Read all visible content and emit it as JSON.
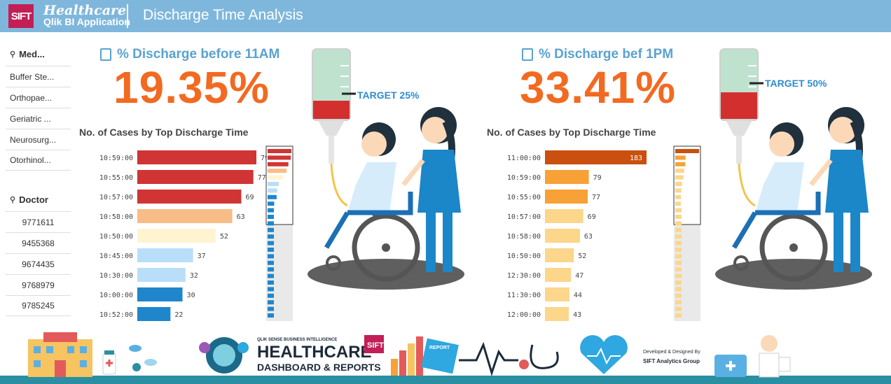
{
  "header": {
    "logo": "SIFT",
    "brand_line1": "Healthcare",
    "brand_line2": "Qlik BI Application",
    "title": "Discharge Time Analysis"
  },
  "filters": [
    {
      "label": "Med...",
      "icon": "search-icon",
      "items": [
        "Buffer Ste...",
        "Orthopae...",
        "Geriatric ...",
        "Neurosurg...",
        "Otorhinol..."
      ]
    },
    {
      "label": "Doctor",
      "icon": "search-icon",
      "items": [
        "9771611",
        "9455368",
        "9674435",
        "9768979",
        "9785245"
      ]
    }
  ],
  "left": {
    "kpi_title": "% Discharge before 11AM",
    "kpi_value": "19.35%",
    "target": "TARGET 25%",
    "target_pct": 25,
    "fill_pct": 19.35,
    "chart_title": "No. of Cases by Top Discharge Time"
  },
  "right": {
    "kpi_title": "% Discharge bef 1PM",
    "kpi_value": "33.41%",
    "target": "TARGET 50%",
    "target_pct": 50,
    "fill_pct": 33.41,
    "chart_title": "No. of Cases by Top Discharge Time"
  },
  "chart_data": [
    {
      "type": "bar",
      "title": "No. of Cases by Top Discharge Time",
      "orientation": "horizontal",
      "categories": [
        "10:59:00",
        "10:55:00",
        "10:57:00",
        "10:58:00",
        "10:50:00",
        "10:45:00",
        "10:30:00",
        "10:00:00",
        "10:52:00"
      ],
      "values": [
        79,
        77,
        69,
        63,
        52,
        37,
        32,
        30,
        22
      ],
      "colors": [
        "#d03434",
        "#d03434",
        "#d03434",
        "#f8bd86",
        "#fff4cf",
        "#b9defa",
        "#b9defa",
        "#1f86cc",
        "#1f86cc"
      ]
    },
    {
      "type": "bar",
      "title": "No. of Cases by Top Discharge Time",
      "orientation": "horizontal",
      "categories": [
        "11:00:00",
        "10:59:00",
        "10:55:00",
        "10:57:00",
        "10:58:00",
        "10:50:00",
        "12:30:00",
        "11:30:00",
        "12:00:00"
      ],
      "values": [
        183,
        79,
        77,
        69,
        63,
        52,
        47,
        44,
        43
      ],
      "colors": [
        "#c9500f",
        "#f7a136",
        "#f7a136",
        "#fbd68b",
        "#fbd68b",
        "#fbd68b",
        "#fbd68b",
        "#fbd68b",
        "#fbd68b"
      ]
    }
  ],
  "footer": {
    "small": "QLIK SENSE BUSINESS INTELLIGENCE",
    "big1": "HEALTHCARE",
    "big2": "DASHBOARD & REPORTS",
    "logo": "SIFT",
    "report": "REPORT",
    "dev1": "Developed & Designed By",
    "dev2": "SIFT Analytics Group",
    "colors": {
      "teal": "#2a8fa3",
      "red": "#c21f56",
      "blue": "#2fa7e0",
      "dark": "#1c2b3a"
    }
  }
}
